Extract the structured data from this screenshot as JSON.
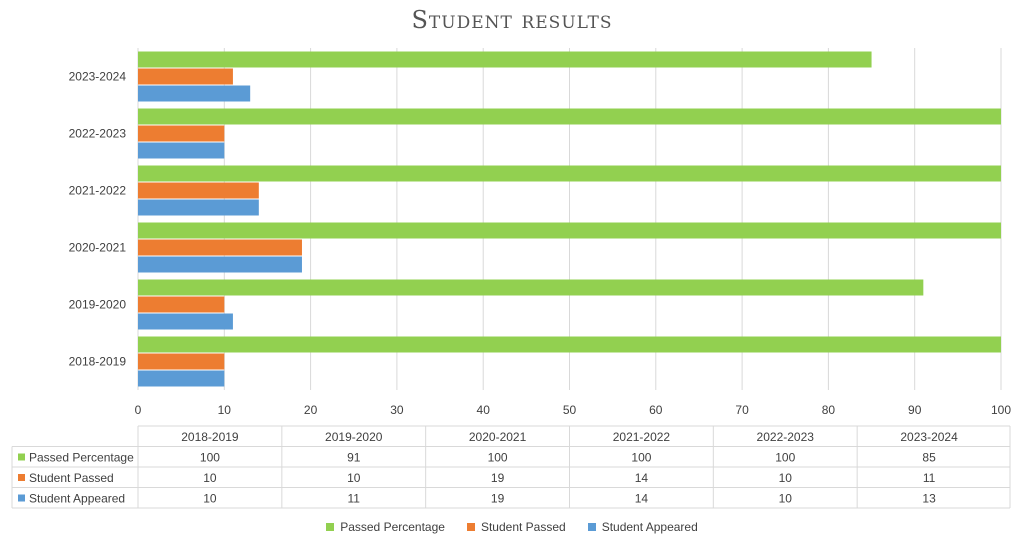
{
  "chart_data": {
    "type": "bar",
    "orientation": "horizontal",
    "title": "Student results",
    "categories": [
      "2018-2019",
      "2019-2020",
      "2020-2021",
      "2021-2022",
      "2022-2023",
      "2023-2024"
    ],
    "series": [
      {
        "name": "Passed Percentage",
        "color": "#92d050",
        "values": [
          100,
          91,
          100,
          100,
          100,
          85
        ]
      },
      {
        "name": "Student Passed",
        "color": "#ed7d31",
        "values": [
          10,
          10,
          19,
          14,
          10,
          11
        ]
      },
      {
        "name": "Student Appeared",
        "color": "#5b9bd5",
        "values": [
          10,
          11,
          19,
          14,
          10,
          13
        ]
      }
    ],
    "xlim": [
      0,
      100
    ],
    "xticks": [
      0,
      10,
      20,
      30,
      40,
      50,
      60,
      70,
      80,
      90,
      100
    ],
    "grid": true,
    "legend_position": "bottom",
    "data_table": true
  }
}
